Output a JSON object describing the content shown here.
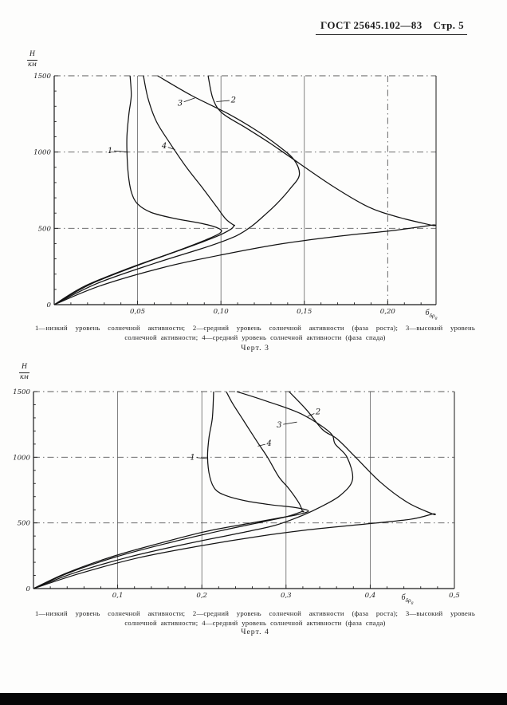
{
  "header": {
    "gost": "ГОСТ 25645.102—83",
    "page": "Стр. 5"
  },
  "chart_data": [
    {
      "type": "line",
      "title": "",
      "figure_label": "Черт. 3",
      "caption_line1": "1—низкий уровень солнечной активности; 2—средний уровень солнечной активности (фаза роста); 3—высокий уровень",
      "caption_line2": "солнечной активности; 4—средний уровень солнечной активности (фаза спада)",
      "ylabel_num": "H",
      "ylabel_den": "км",
      "xlabel_main": "б",
      "xlabel_sub": "δρ",
      "xlabel_subsub": "а",
      "xlim": [
        0,
        0.229
      ],
      "ylim": [
        0,
        1500
      ],
      "x_minor_step": 0.01,
      "y_minor_step": 100,
      "x_ticks": [
        {
          "v": 0.05,
          "label": "0,05"
        },
        {
          "v": 0.1,
          "label": "0,10"
        },
        {
          "v": 0.15,
          "label": "0,15"
        },
        {
          "v": 0.2,
          "label": "0,20"
        }
      ],
      "y_ticks": [
        {
          "v": 0,
          "label": "0"
        },
        {
          "v": 500,
          "label": "500"
        },
        {
          "v": 1000,
          "label": "1000"
        },
        {
          "v": 1500,
          "label": "1500"
        }
      ],
      "x_grid": [
        {
          "v": 0.05,
          "style": "solid"
        },
        {
          "v": 0.1,
          "style": "solid"
        },
        {
          "v": 0.15,
          "style": "solid"
        },
        {
          "v": 0.2,
          "style": "dashdot"
        }
      ],
      "y_grid": [
        {
          "v": 500,
          "style": "dashdot"
        },
        {
          "v": 1000,
          "style": "dashdot"
        },
        {
          "v": 1500,
          "style": "dashdot"
        }
      ],
      "series": [
        {
          "name": "1",
          "points": [
            [
              0,
              0
            ],
            [
              0.018,
              120
            ],
            [
              0.045,
              240
            ],
            [
              0.072,
              345
            ],
            [
              0.091,
              425
            ],
            [
              0.1,
              475
            ],
            [
              0.0975,
              505
            ],
            [
              0.088,
              533
            ],
            [
              0.072,
              565
            ],
            [
              0.058,
              605
            ],
            [
              0.05,
              660
            ],
            [
              0.0465,
              730
            ],
            [
              0.0448,
              820
            ],
            [
              0.0438,
              950
            ],
            [
              0.0436,
              1100
            ],
            [
              0.0448,
              1250
            ],
            [
              0.0462,
              1370
            ],
            [
              0.0455,
              1500
            ]
          ]
        },
        {
          "name": "4",
          "points": [
            [
              0,
              0
            ],
            [
              0.022,
              135
            ],
            [
              0.052,
              265
            ],
            [
              0.08,
              375
            ],
            [
              0.097,
              445
            ],
            [
              0.106,
              495
            ],
            [
              0.1078,
              520
            ],
            [
              0.1078,
              520
            ],
            [
              0.103,
              560
            ],
            [
              0.0975,
              640
            ],
            [
              0.0893,
              760
            ],
            [
              0.0793,
              900
            ],
            [
              0.0693,
              1060
            ],
            [
              0.0613,
              1200
            ],
            [
              0.0563,
              1350
            ],
            [
              0.0535,
              1500
            ]
          ]
        },
        {
          "name": "3",
          "points": [
            [
              0,
              0
            ],
            [
              0.026,
              140
            ],
            [
              0.06,
              270
            ],
            [
              0.092,
              380
            ],
            [
              0.109,
              450
            ],
            [
              0.1185,
              515
            ],
            [
              0.1265,
              590
            ],
            [
              0.1338,
              665
            ],
            [
              0.1415,
              760
            ],
            [
              0.147,
              850
            ],
            [
              0.1438,
              950
            ],
            [
              0.1345,
              1040
            ],
            [
              0.1215,
              1140
            ],
            [
              0.1045,
              1250
            ],
            [
              0.0825,
              1370
            ],
            [
              0.062,
              1500
            ]
          ]
        },
        {
          "name": "2",
          "points": [
            [
              0,
              0
            ],
            [
              0.028,
              125
            ],
            [
              0.066,
              245
            ],
            [
              0.102,
              330
            ],
            [
              0.137,
              400
            ],
            [
              0.172,
              450
            ],
            [
              0.204,
              487
            ],
            [
              0.2262,
              521
            ],
            [
              0.2262,
              521
            ],
            [
              0.2075,
              570
            ],
            [
              0.1885,
              640
            ],
            [
              0.1665,
              780
            ],
            [
              0.1405,
              975
            ],
            [
              0.1285,
              1065
            ],
            [
              0.1148,
              1160
            ],
            [
              0.1008,
              1255
            ],
            [
              0.0952,
              1350
            ],
            [
              0.0923,
              1500
            ]
          ]
        }
      ],
      "labels": [
        {
          "text": "1",
          "x": 0.0335,
          "y": 1010,
          "lx": 0.0443,
          "ly": 1000
        },
        {
          "text": "4",
          "x": 0.066,
          "y": 1040,
          "lx": 0.0725,
          "ly": 1015
        },
        {
          "text": "3",
          "x": 0.0755,
          "y": 1320,
          "lx": 0.0845,
          "ly": 1355
        },
        {
          "text": "2",
          "x": 0.1075,
          "y": 1340,
          "lx": 0.0972,
          "ly": 1330
        }
      ]
    },
    {
      "type": "line",
      "title": "",
      "figure_label": "Черт. 4",
      "caption_line1": "1—низкий уровень солнечной активности; 2—средний уровень солнечной активности (фаза роста); 3—высокий уровень",
      "caption_line2": "солнечной активности; 4—средний уровень солнечной активности (фаза спада)",
      "ylabel_num": "H",
      "ylabel_den": "км",
      "xlabel_main": "б",
      "xlabel_sub": "δρ",
      "xlabel_subsub": "а",
      "xlim": [
        0,
        0.5
      ],
      "ylim": [
        0,
        1500
      ],
      "x_minor_step": 0.02,
      "y_minor_step": 100,
      "x_ticks": [
        {
          "v": 0.1,
          "label": "0,1"
        },
        {
          "v": 0.2,
          "label": "0,2"
        },
        {
          "v": 0.3,
          "label": "0,3"
        },
        {
          "v": 0.4,
          "label": "0,4"
        },
        {
          "v": 0.5,
          "label": "0,5"
        }
      ],
      "y_ticks": [
        {
          "v": 0,
          "label": "0"
        },
        {
          "v": 500,
          "label": "500"
        },
        {
          "v": 1000,
          "label": "1000"
        },
        {
          "v": 1500,
          "label": "1500"
        }
      ],
      "x_grid": [
        {
          "v": 0.1,
          "style": "solid"
        },
        {
          "v": 0.2,
          "style": "solid"
        },
        {
          "v": 0.3,
          "style": "solid"
        },
        {
          "v": 0.4,
          "style": "solid"
        }
      ],
      "y_grid": [
        {
          "v": 500,
          "style": "dashdot"
        },
        {
          "v": 1000,
          "style": "dashdot"
        },
        {
          "v": 1500,
          "style": "dashdot"
        }
      ],
      "series": [
        {
          "name": "1",
          "points": [
            [
              0,
              0
            ],
            [
              0.038,
              115
            ],
            [
              0.092,
              240
            ],
            [
              0.15,
              345
            ],
            [
              0.205,
              435
            ],
            [
              0.255,
              495
            ],
            [
              0.29,
              535
            ],
            [
              0.315,
              565
            ],
            [
              0.3265,
              592
            ],
            [
              0.31,
              618
            ],
            [
              0.282,
              638
            ],
            [
              0.252,
              668
            ],
            [
              0.229,
              707
            ],
            [
              0.216,
              755
            ],
            [
              0.2095,
              850
            ],
            [
              0.2068,
              1000
            ],
            [
              0.2085,
              1150
            ],
            [
              0.2125,
              1300
            ],
            [
              0.214,
              1500
            ]
          ]
        },
        {
          "name": "4",
          "points": [
            [
              0,
              0
            ],
            [
              0.042,
              120
            ],
            [
              0.1,
              245
            ],
            [
              0.162,
              350
            ],
            [
              0.222,
              440
            ],
            [
              0.27,
              505
            ],
            [
              0.301,
              548
            ],
            [
              0.3195,
              588
            ],
            [
              0.3195,
              588
            ],
            [
              0.3155,
              650
            ],
            [
              0.3035,
              760
            ],
            [
              0.2915,
              850
            ],
            [
              0.278,
              1000
            ],
            [
              0.2655,
              1120
            ],
            [
              0.2495,
              1280
            ],
            [
              0.2365,
              1410
            ],
            [
              0.229,
              1500
            ]
          ]
        },
        {
          "name": "3",
          "points": [
            [
              0,
              0
            ],
            [
              0.048,
              118
            ],
            [
              0.112,
              238
            ],
            [
              0.18,
              338
            ],
            [
              0.243,
              420
            ],
            [
              0.285,
              478
            ],
            [
              0.316,
              548
            ],
            [
              0.3405,
              620
            ],
            [
              0.3645,
              710
            ],
            [
              0.379,
              830
            ],
            [
              0.3725,
              1000
            ],
            [
              0.3585,
              1100
            ],
            [
              0.352,
              1190
            ],
            [
              0.318,
              1330
            ],
            [
              0.2755,
              1430
            ],
            [
              0.2415,
              1500
            ]
          ]
        },
        {
          "name": "2",
          "points": [
            [
              0,
              0
            ],
            [
              0.055,
              115
            ],
            [
              0.125,
              235
            ],
            [
              0.198,
              325
            ],
            [
              0.268,
              398
            ],
            [
              0.33,
              450
            ],
            [
              0.395,
              492
            ],
            [
              0.448,
              528
            ],
            [
              0.474,
              568
            ],
            [
              0.474,
              568
            ],
            [
              0.4445,
              655
            ],
            [
              0.4125,
              808
            ],
            [
              0.3815,
              1008
            ],
            [
              0.3605,
              1140
            ],
            [
              0.3435,
              1210
            ],
            [
              0.3245,
              1360
            ],
            [
              0.3035,
              1500
            ]
          ]
        }
      ],
      "labels": [
        {
          "text": "1",
          "x": 0.189,
          "y": 1000,
          "lx": 0.2068,
          "ly": 990
        },
        {
          "text": "4",
          "x": 0.28,
          "y": 1105,
          "lx": 0.2665,
          "ly": 1085
        },
        {
          "text": "3",
          "x": 0.292,
          "y": 1245,
          "lx": 0.313,
          "ly": 1268
        },
        {
          "text": "2",
          "x": 0.338,
          "y": 1345,
          "lx": 0.3255,
          "ly": 1310
        }
      ]
    }
  ]
}
